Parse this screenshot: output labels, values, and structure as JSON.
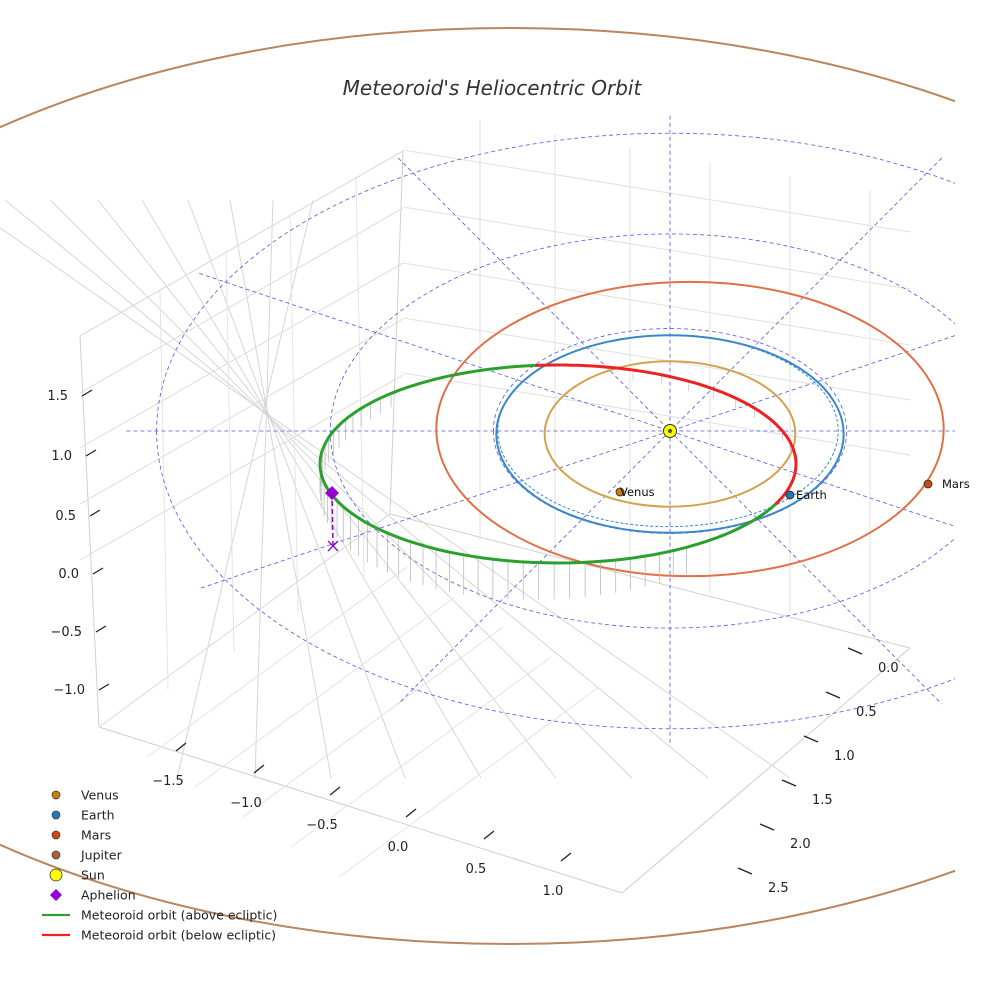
{
  "chart_data": {
    "type": "line",
    "title": "Meteoroid's Heliocentric Orbit",
    "projection": "3d",
    "x_ticks": [
      "−1.5",
      "−1.0",
      "−0.5",
      "0.0",
      "0.5",
      "1.0"
    ],
    "y_ticks": [
      "0.0",
      "0.5",
      "1.0",
      "1.5",
      "2.0",
      "2.5"
    ],
    "z_ticks": [
      "1.5",
      "1.0",
      "0.5",
      "0.0",
      "−0.5",
      "−1.0"
    ],
    "planets": [
      {
        "name": "Venus",
        "radius_au": 0.72,
        "color": "#d4a24c",
        "marker_color": "#d07a10"
      },
      {
        "name": "Earth",
        "radius_au": 1.0,
        "color": "#3a88c8",
        "marker_color": "#1f7ab5"
      },
      {
        "name": "Mars",
        "radius_au": 1.52,
        "color": "#e07048",
        "marker_color": "#cc4a10"
      },
      {
        "name": "Jupiter",
        "radius_au": 5.2,
        "color": "#b98660",
        "marker_color": "#b0622e"
      }
    ],
    "sun": {
      "name": "Sun",
      "color": "#ffff00"
    },
    "aphelion": {
      "name": "Aphelion",
      "color": "#9400d3"
    },
    "meteoroid_orbit": {
      "above_label": "Meteoroid orbit (above ecliptic)",
      "above_color": "#2ca02c",
      "below_label": "Meteoroid orbit (below ecliptic)",
      "below_color": "#ee2222"
    },
    "guide_color": "#5555ee",
    "legend": [
      {
        "label": "Venus",
        "kind": "dot",
        "color": "#d07a10"
      },
      {
        "label": "Earth",
        "kind": "dot",
        "color": "#1f7ab5"
      },
      {
        "label": "Mars",
        "kind": "dot",
        "color": "#cc4a10"
      },
      {
        "label": "Jupiter",
        "kind": "dot",
        "color": "#b0622e"
      },
      {
        "label": "Sun",
        "kind": "sun",
        "color": "#ffff00"
      },
      {
        "label": "Aphelion",
        "kind": "diamond",
        "color": "#9400d3"
      },
      {
        "label": "Meteoroid orbit (above ecliptic)",
        "kind": "line",
        "color": "#2ca02c"
      },
      {
        "label": "Meteoroid orbit (below ecliptic)",
        "kind": "line",
        "color": "#ee2222"
      }
    ],
    "legend_position": "bottom-left",
    "grid": true
  }
}
